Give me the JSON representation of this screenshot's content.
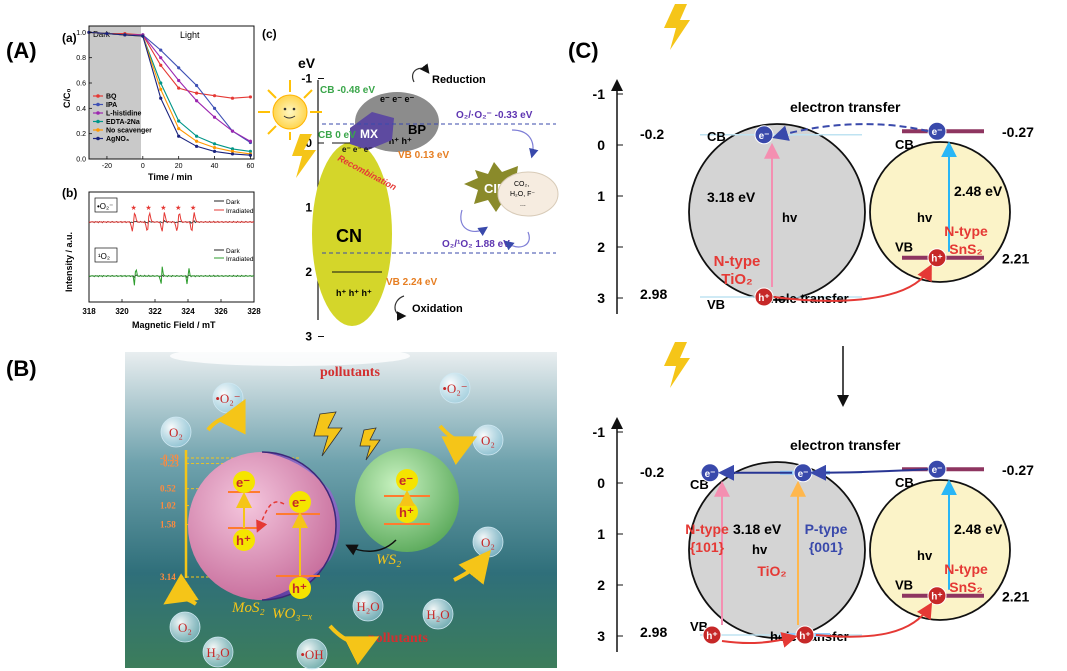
{
  "panel_labels": {
    "A": "(A)",
    "B": "(B)",
    "C": "(C)"
  },
  "panelA": {
    "sub_a": {
      "label": "(a)",
      "region_dark": "Dark",
      "region_light": "Light",
      "ylabel": "C/C₀",
      "xlabel": "Time / min",
      "xticks": [
        "-20",
        "0",
        "20",
        "40",
        "60"
      ],
      "yticks": [
        "0.0",
        "0.2",
        "0.4",
        "0.6",
        "0.8",
        "1.0"
      ],
      "chart_data": {
        "type": "line",
        "x": [
          -30,
          -20,
          -10,
          0,
          10,
          20,
          30,
          40,
          50,
          60
        ],
        "xlim": [
          -30,
          62
        ],
        "ylim": [
          0,
          1.05
        ],
        "series": [
          {
            "name": "BQ",
            "color": "#e53935",
            "values": [
              1.0,
              0.99,
              0.99,
              0.98,
              0.74,
              0.56,
              0.52,
              0.5,
              0.48,
              0.49
            ]
          },
          {
            "name": "IPA",
            "color": "#3f51b5",
            "values": [
              1.0,
              0.99,
              0.98,
              0.98,
              0.86,
              0.72,
              0.58,
              0.4,
              0.22,
              0.13
            ]
          },
          {
            "name": "L-histidine",
            "color": "#9c27b0",
            "values": [
              1.0,
              0.99,
              0.98,
              0.98,
              0.8,
              0.62,
              0.46,
              0.33,
              0.22,
              0.14
            ]
          },
          {
            "name": "EDTA-2Na",
            "color": "#009688",
            "values": [
              1.0,
              0.99,
              0.98,
              0.97,
              0.6,
              0.3,
              0.18,
              0.12,
              0.08,
              0.06
            ]
          },
          {
            "name": "No scavenger",
            "color": "#ff9800",
            "values": [
              1.0,
              0.99,
              0.98,
              0.97,
              0.55,
              0.24,
              0.14,
              0.09,
              0.06,
              0.04
            ]
          },
          {
            "name": "AgNO₃",
            "color": "#1a237e",
            "values": [
              1.0,
              0.99,
              0.98,
              0.97,
              0.48,
              0.18,
              0.1,
              0.06,
              0.04,
              0.03
            ]
          }
        ]
      }
    },
    "sub_b": {
      "label": "(b)",
      "ylabel": "Intensity / a.u.",
      "xlabel": "Magnetic Field / mT",
      "xticks": [
        "318",
        "320",
        "322",
        "324",
        "326",
        "328"
      ],
      "tag_top": "•O₂⁻",
      "tag_bottom": "¹O₂",
      "legend_top": [
        "Dark",
        "Irradiated"
      ],
      "legend_bottom": [
        "Dark",
        "Irradiated"
      ],
      "color_dark": "#222222",
      "color_irr_top": "#e53935",
      "color_irr_bottom": "#2e9e2e"
    },
    "sub_c": {
      "label": "(c)",
      "ev": "eV",
      "yticks": [
        "-1",
        "0",
        "1",
        "2",
        "3"
      ],
      "cb_bp": "CB -0.48 eV",
      "cb_cn": "CB 0 eV",
      "vb_bp": "VB 0.13 eV",
      "vb_cn": "VB 2.24 eV",
      "o2_level": "O₂/·O₂⁻ -0.33 eV",
      "singlet_level": "O₂/¹O₂ 1.88 eV",
      "reduction": "Reduction",
      "oxidation": "Oxidation",
      "recombination": "Recombination",
      "cn": "CN",
      "bp": "BP",
      "mx": "MX",
      "cip": "CIP",
      "electrons": "e⁻ e⁻ e⁻",
      "holes": "h⁺ h⁺ h⁺",
      "products": [
        "CO₂,",
        "H₂O, F⁻",
        "..."
      ]
    }
  },
  "panelB": {
    "pollutants_top": "pollutants",
    "pollutants_bottom": "pollutants",
    "o2_radical": "•O₂⁻",
    "o2": "O₂",
    "h2o": "H₂O",
    "oh_radical": "•OH",
    "mos2": "MoS₂",
    "wo3": "WO₃₋ₓ",
    "ws2": "WS₂",
    "e": "e⁻",
    "h": "h⁺",
    "energy_levels": [
      "-0.39",
      "-0.23",
      "0.52",
      "1.02",
      "1.58",
      "3.14"
    ]
  },
  "panelC": {
    "top": {
      "title": "electron transfer",
      "bottom_label": "hole transfer",
      "yticks": [
        "-1",
        "0",
        "1",
        "2",
        "3"
      ],
      "left_cb": "-0.2",
      "left_vb": "2.98",
      "right_cb": "-0.27",
      "right_vb": "2.21",
      "cb": "CB",
      "vb": "VB",
      "gap_left": "3.18 eV",
      "gap_right": "2.48 eV",
      "hv": "hv",
      "left_type": "N-type",
      "left_mat": "TiO₂",
      "right_type": "N-type",
      "right_mat": "SnS₂",
      "e": "e⁻",
      "h": "h⁺"
    },
    "bottom": {
      "title": "electron transfer",
      "bottom_label": "hole transfer",
      "yticks": [
        "-1",
        "0",
        "1",
        "2",
        "3"
      ],
      "left_cb": "-0.2",
      "left_vb": "2.98",
      "right_cb": "-0.27",
      "right_vb": "2.21",
      "cb": "CB",
      "vb": "VB",
      "gap_left": "3.18 eV",
      "gap_right": "2.48 eV",
      "hv": "hv",
      "n_type": "N-type",
      "n_facet": "{101}",
      "p_type": "P-type",
      "p_facet": "{001}",
      "left_mat": "TiO₂",
      "right_type": "N-type",
      "right_mat": "SnS₂",
      "e": "e⁻",
      "h": "h⁺"
    }
  },
  "colors": {
    "grey_sphere": "#d4d4d4",
    "yellow_sphere": "#fbf3c8",
    "band_bar": "#8e3560",
    "electron": "#3949ab",
    "hole": "#c62828",
    "red_text": "#e53935",
    "blue_text": "#3949ab",
    "lightning": "#f5c518",
    "cyan_arrow": "#29b6f6",
    "pink_arrow": "#f48fb1",
    "orange_arrow": "#ffb74d"
  }
}
